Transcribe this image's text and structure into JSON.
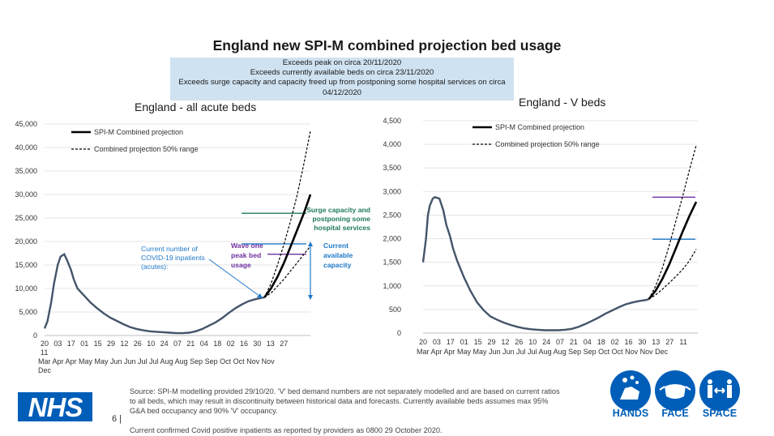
{
  "page": {
    "title": "England new SPI-M combined projection bed usage",
    "notes": [
      "Exceeds peak on circa 20/11/2020",
      "Exceeds currently available beds on circa 23/11/2020",
      "Exceeds surge capacity and capacity freed up from postponing some hospital services on circa",
      "04/12/2020"
    ],
    "source_lines": [
      "Source: SPI-M modelling provided 29/10/20. 'V' bed demand numbers are not separately modelled and are based on current ratios",
      "to all beds, which may result in discontinuity between historical  data and forecasts. Currently available beds assumes max 95%",
      "G&A bed occupancy and 90% 'V' occupancy."
    ],
    "inpatients_note": "Current confirmed Covid positive inpatients as reported by providers as 0800 29 October 2020.",
    "page_number": "6",
    "logo_text": "NHS",
    "campaign": [
      "HANDS",
      "FACE",
      "SPACE"
    ]
  },
  "colors": {
    "series": "#44546a",
    "projection": "#000000",
    "surge_line": "#1f7a5a",
    "available_line": "#1f78c8",
    "wave_one_line": "#7030a0",
    "note_box": "#cfe2f1",
    "nhs_blue": "#005eb8"
  },
  "chart_data": [
    {
      "type": "line",
      "title": "England - all acute beds",
      "ylim": [
        0,
        45000
      ],
      "yticks": [
        "0",
        "5,000",
        "10,000",
        "15,000",
        "20,000",
        "25,000",
        "30,000",
        "35,000",
        "40,000",
        "45,000"
      ],
      "x_day_labels": [
        "20",
        "03",
        "17",
        "01",
        "15",
        "29",
        "12",
        "26",
        "10",
        "24",
        "07",
        "21",
        "04",
        "18",
        "02",
        "16",
        "30",
        "13",
        "27"
      ],
      "x_month_labels": [
        "Mar",
        "Apr",
        "Apr",
        "May",
        "May",
        "Jun",
        "Jun",
        "Jul",
        "Jul",
        "Aug",
        "Aug",
        "Sep",
        "Sep",
        "Oct",
        "Oct",
        "Nov",
        "Nov"
      ],
      "x_extra_labels": [
        "11",
        "Dec"
      ],
      "legend": [
        "SPI-M Combined projection",
        "Combined projection 50% range"
      ],
      "historical_days": [
        0,
        3,
        7,
        10,
        14,
        17,
        21,
        24,
        28,
        31,
        35,
        42,
        49,
        56,
        63,
        70,
        77,
        84,
        91,
        98,
        105,
        112,
        119,
        126,
        133,
        140,
        147,
        154,
        161,
        168,
        175,
        182,
        189,
        196,
        203,
        210,
        217,
        224,
        231,
        234
      ],
      "historical_values": [
        1500,
        3000,
        7000,
        11000,
        15000,
        16800,
        17300,
        16000,
        14000,
        12000,
        10000,
        8500,
        7000,
        5800,
        4700,
        3800,
        3100,
        2400,
        1800,
        1400,
        1100,
        900,
        800,
        700,
        600,
        500,
        500,
        600,
        900,
        1400,
        2100,
        2800,
        3700,
        4800,
        5800,
        6600,
        7300,
        7700,
        8000,
        8100
      ],
      "projection_days": [
        234,
        241,
        248,
        255,
        262,
        269,
        276,
        283
      ],
      "projection_values": [
        8100,
        10000,
        12500,
        15500,
        19000,
        22500,
        26000,
        30000
      ],
      "range_upper_values": [
        8100,
        11000,
        15000,
        19500,
        24500,
        30000,
        36500,
        43500
      ],
      "range_lower_values": [
        8100,
        9000,
        10500,
        12000,
        13800,
        15500,
        17300,
        19000
      ],
      "reference_lines": [
        {
          "label": "Surge capacity and postponing some hospital services",
          "value": 26000
        },
        {
          "label": "Current available capacity",
          "value": 19500
        },
        {
          "label": "Wave one peak bed usage",
          "value": 17300
        }
      ],
      "annotations": {
        "surge": "Surge capacity and postponing some hospital services",
        "available": "Current available capacity",
        "wave_one": "Wave one peak bed usage",
        "current_inpatients": "Current number of COVID-19 inpatients (acutes):"
      }
    },
    {
      "type": "line",
      "title": "England - V beds",
      "ylim": [
        0,
        4500
      ],
      "yticks": [
        "0",
        "500",
        "1,000",
        "1,500",
        "2,000",
        "2,500",
        "3,000",
        "3,500",
        "4,000",
        "4,500"
      ],
      "x_day_labels": [
        "20",
        "03",
        "17",
        "01",
        "15",
        "29",
        "12",
        "26",
        "10",
        "24",
        "07",
        "21",
        "04",
        "18",
        "02",
        "16",
        "30",
        "13",
        "27",
        "11"
      ],
      "x_month_labels": [
        "Mar",
        "Apr",
        "Apr",
        "May",
        "May",
        "Jun",
        "Jun",
        "Jul",
        "Jul",
        "Aug",
        "Aug",
        "Sep",
        "Sep",
        "Oct",
        "Oct",
        "Nov",
        "Nov",
        "Dec"
      ],
      "legend": [
        "SPI-M Combined projection",
        "Combined projection 50% range"
      ],
      "historical_days": [
        0,
        3,
        5,
        7,
        10,
        12,
        14,
        17,
        21,
        24,
        28,
        31,
        35,
        42,
        49,
        56,
        63,
        70,
        77,
        84,
        91,
        98,
        105,
        112,
        119,
        126,
        133,
        140,
        147,
        154,
        161,
        168,
        175,
        182,
        189,
        196,
        203,
        210,
        217,
        224,
        231,
        234
      ],
      "historical_values": [
        1500,
        2000,
        2500,
        2700,
        2850,
        2880,
        2870,
        2850,
        2600,
        2300,
        2050,
        1800,
        1550,
        1200,
        900,
        650,
        480,
        350,
        280,
        220,
        170,
        130,
        100,
        80,
        70,
        60,
        60,
        60,
        70,
        90,
        130,
        190,
        260,
        330,
        410,
        480,
        550,
        610,
        650,
        680,
        700,
        720
      ],
      "projection_days": [
        234,
        241,
        248,
        255,
        262,
        269,
        276,
        283
      ],
      "projection_values": [
        720,
        900,
        1150,
        1450,
        1800,
        2150,
        2480,
        2780
      ],
      "range_upper_values": [
        720,
        1000,
        1380,
        1850,
        2380,
        2900,
        3450,
        3980
      ],
      "range_lower_values": [
        720,
        810,
        930,
        1060,
        1200,
        1350,
        1530,
        1780
      ],
      "reference_lines": [
        {
          "label": "Surge capacity",
          "value": 2880
        },
        {
          "label": "Current available capacity",
          "value": 1990
        }
      ]
    }
  ]
}
